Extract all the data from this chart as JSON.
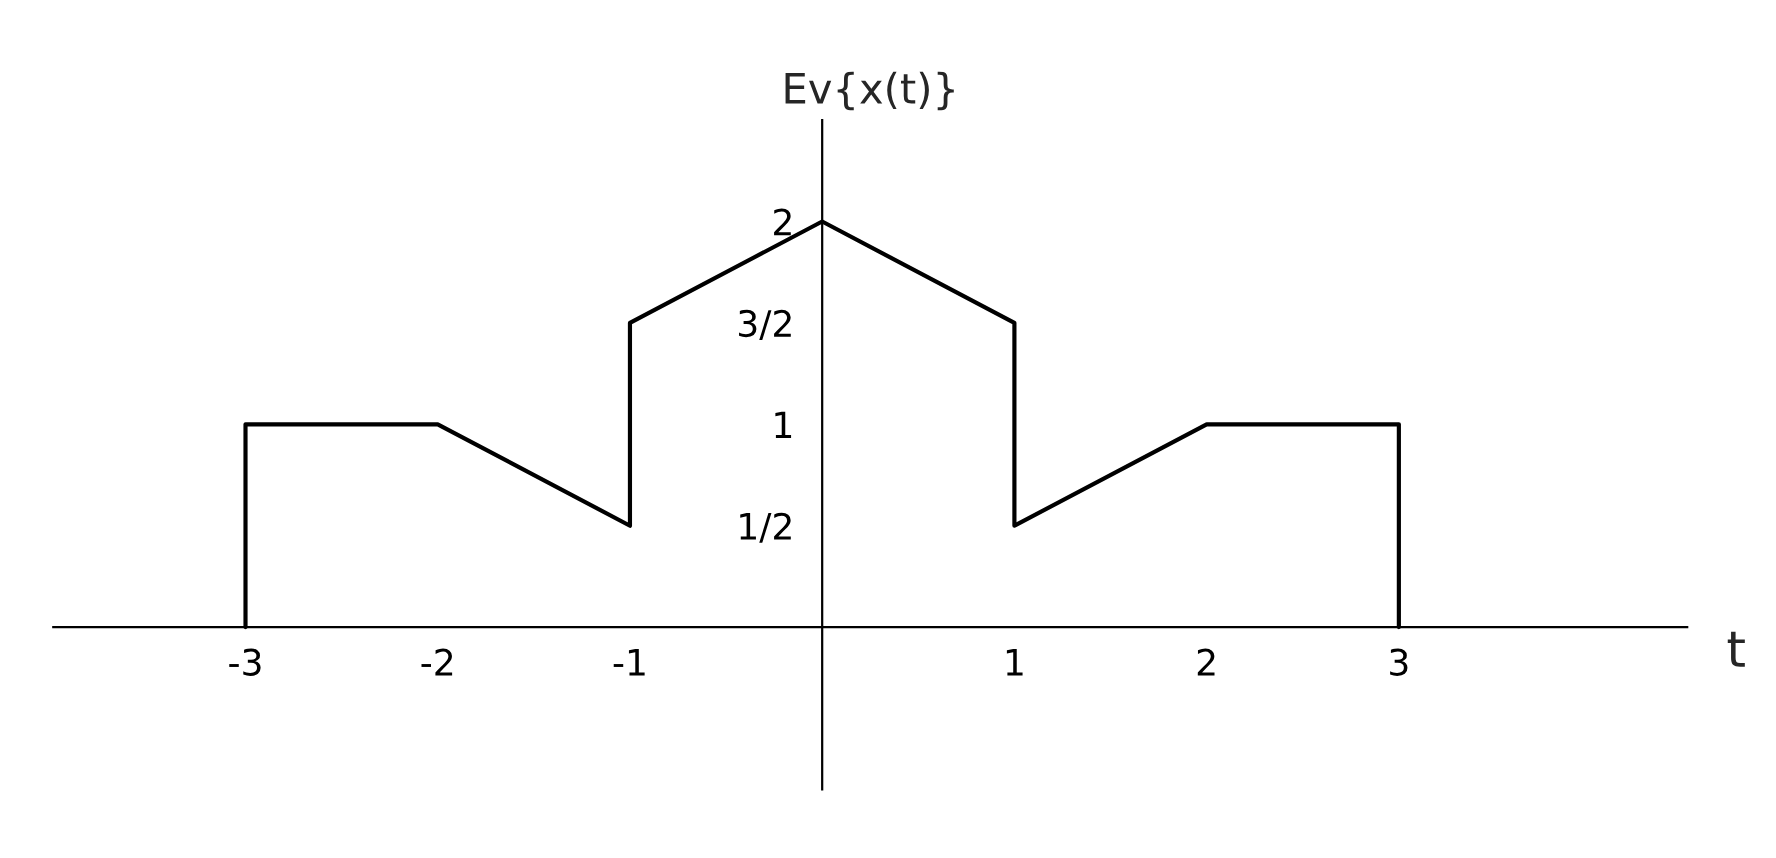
{
  "chart_data": {
    "type": "line",
    "title": "Ev{x(t)}",
    "xlabel": "t",
    "x": [
      -3,
      -3,
      -2,
      -1,
      -1,
      0,
      1,
      1,
      2,
      3,
      3
    ],
    "series": [
      {
        "color": "#000000",
        "values": [
          0,
          1,
          1,
          0.5,
          1.5,
          2,
          1.5,
          0.5,
          1,
          1,
          0
        ]
      }
    ],
    "xlim": [
      -4,
      4.5
    ],
    "ylim": [
      -0.8,
      2.5
    ],
    "xticks": [
      -3,
      -2,
      -1,
      1,
      2,
      3
    ],
    "yticks": [
      {
        "value": 0.5,
        "label": "1/2"
      },
      1,
      {
        "value": 1.5,
        "label": "3/2"
      },
      2
    ],
    "grid": false,
    "legend": false
  }
}
